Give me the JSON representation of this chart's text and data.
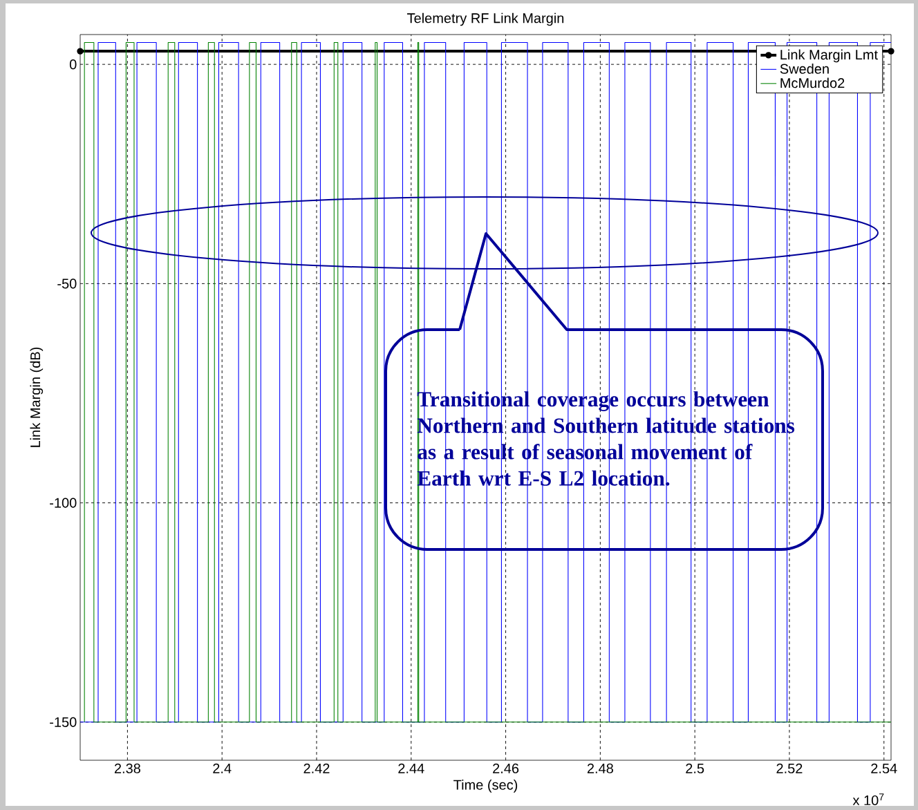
{
  "chart_data": {
    "type": "step",
    "title": "Telemetry RF Link Margin",
    "xlabel": "Time (sec)",
    "ylabel": "Link Margin (dB)",
    "xlim": [
      2.37,
      2.5415
    ],
    "ylim": [
      -158.7,
      6.8
    ],
    "xticks": [
      2.38,
      2.4,
      2.42,
      2.44,
      2.46,
      2.48,
      2.5,
      2.52,
      2.54
    ],
    "yticks": [
      -150,
      -100,
      -50,
      0
    ],
    "grid": true,
    "legend": "top right",
    "annotations": [
      "x 10$^{7}$",
      "Transitional coverage occurs between Northern and Southern latitude stations as a result of seasonal movement of Earth wrt E-S L2 location."
    ],
    "series": [
      {
        "name": "Link Margin Lmt",
        "type": "line",
        "marker": "circle",
        "color": "#000000",
        "x": [
          2.37,
          2.5415
        ],
        "values": [
          3,
          3
        ]
      },
      {
        "name": "Sweden",
        "color": "#0000ff",
        "x": [
          2.37,
          2.3738,
          2.3775,
          2.382,
          2.3861,
          2.3908,
          2.3948,
          2.3993,
          2.4035,
          2.4082,
          2.4122,
          2.4168,
          2.4208,
          2.4256,
          2.4296,
          2.4343,
          2.4382,
          2.4428,
          2.4473,
          2.4512,
          2.456,
          2.4591,
          2.4646,
          2.4678,
          2.4732,
          2.4765,
          2.4819,
          2.4852,
          2.4906,
          2.494,
          2.4992,
          2.5026,
          2.5081,
          2.5113,
          2.517,
          2.5195,
          2.5258,
          2.5284,
          2.5344,
          2.5371,
          2.5415
        ],
        "values": [
          -150,
          5,
          -150,
          5,
          -150,
          5,
          -150,
          5,
          -150,
          5,
          -150,
          5,
          -150,
          5,
          -150,
          5,
          -150,
          5,
          -150,
          5,
          -150,
          5,
          -150,
          5,
          -150,
          5,
          -150,
          5,
          -150,
          5,
          -150,
          5,
          -150,
          5,
          -150,
          5,
          -150,
          5,
          -150,
          5,
          5
        ]
      },
      {
        "name": "McMurdo2",
        "color": "#008000",
        "x": [
          2.3709,
          2.3709,
          2.3729,
          2.3797,
          2.3814,
          2.3886,
          2.39,
          2.3971,
          2.3984,
          2.4058,
          2.4072,
          2.4147,
          2.4158,
          2.4237,
          2.4245,
          2.4324,
          2.4328,
          2.4414,
          2.4416,
          2.5415
        ],
        "values": [
          -150,
          5,
          -150,
          5,
          -150,
          5,
          -150,
          5,
          -150,
          5,
          -150,
          5,
          -150,
          5,
          -150,
          5,
          -150,
          5,
          -150,
          -150
        ]
      }
    ]
  }
}
